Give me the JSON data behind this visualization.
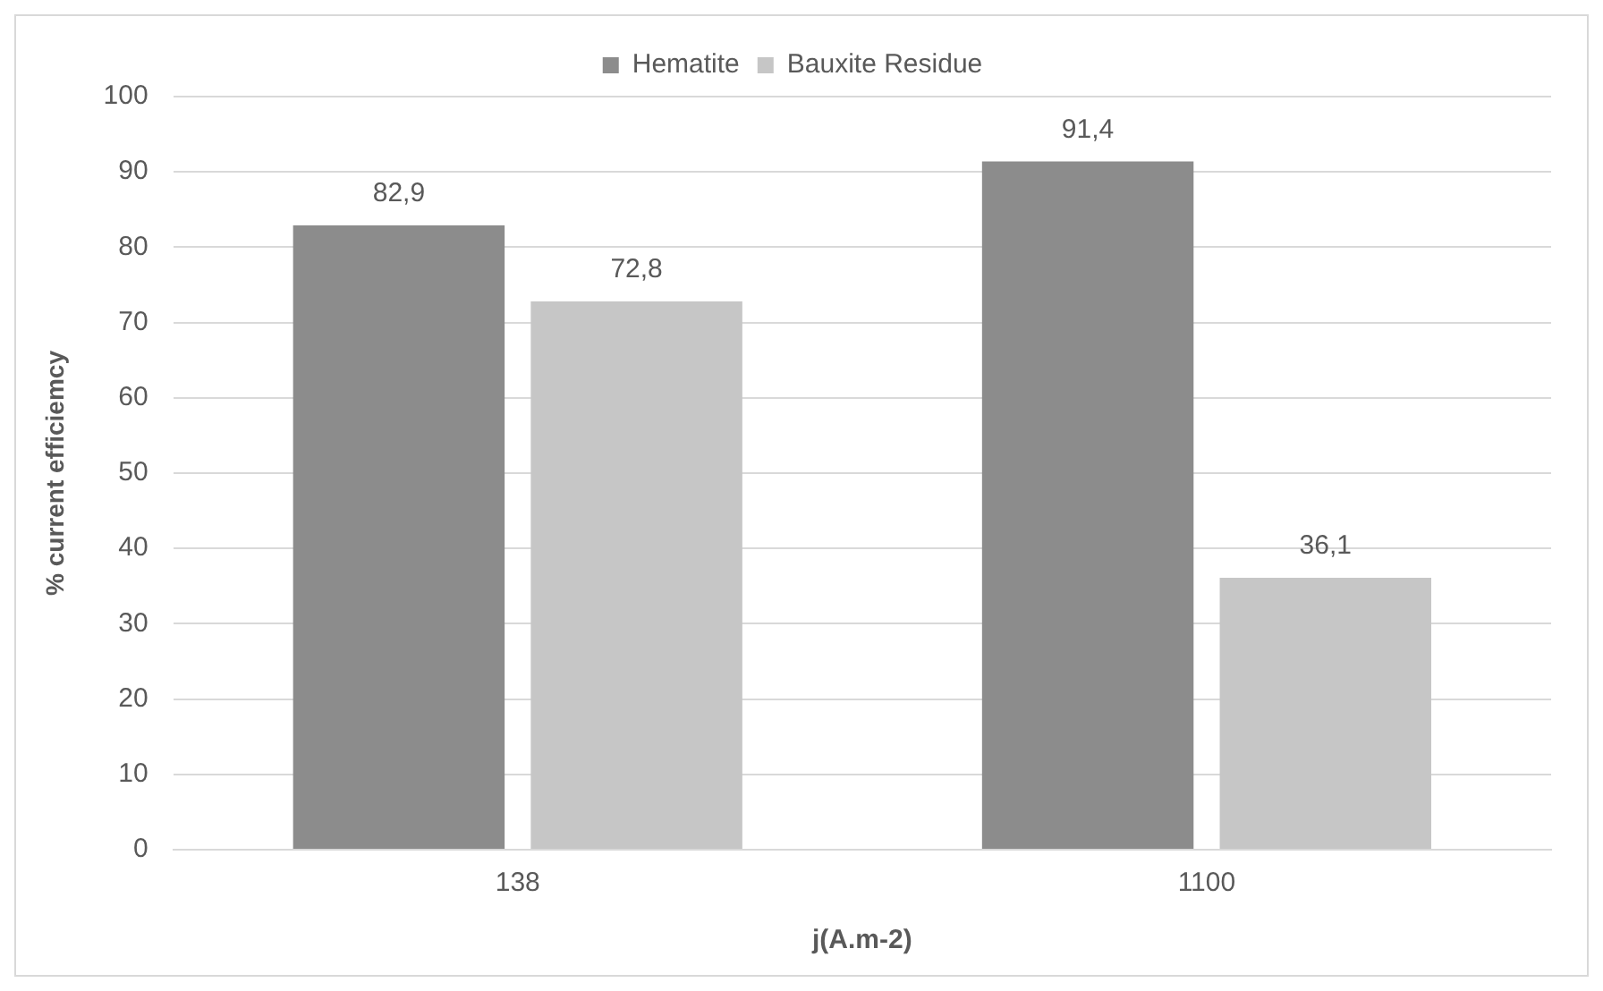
{
  "chart_data": {
    "type": "bar",
    "xlabel": "j(A.m-2)",
    "ylabel": "% current efficiemcy",
    "categories": [
      "138",
      "1100"
    ],
    "series": [
      {
        "name": "Hematite",
        "color": "#8c8c8c",
        "values": [
          82.9,
          91.4
        ],
        "value_labels": [
          "82,9",
          "91,4"
        ]
      },
      {
        "name": "Bauxite Residue",
        "color": "#c6c6c6",
        "values": [
          72.8,
          36.1
        ],
        "value_labels": [
          "72,8",
          "36,1"
        ]
      }
    ],
    "ylim": [
      0,
      100
    ],
    "yticks": [
      0,
      10,
      20,
      30,
      40,
      50,
      60,
      70,
      80,
      90,
      100
    ],
    "grid": "y",
    "legend": "top"
  }
}
